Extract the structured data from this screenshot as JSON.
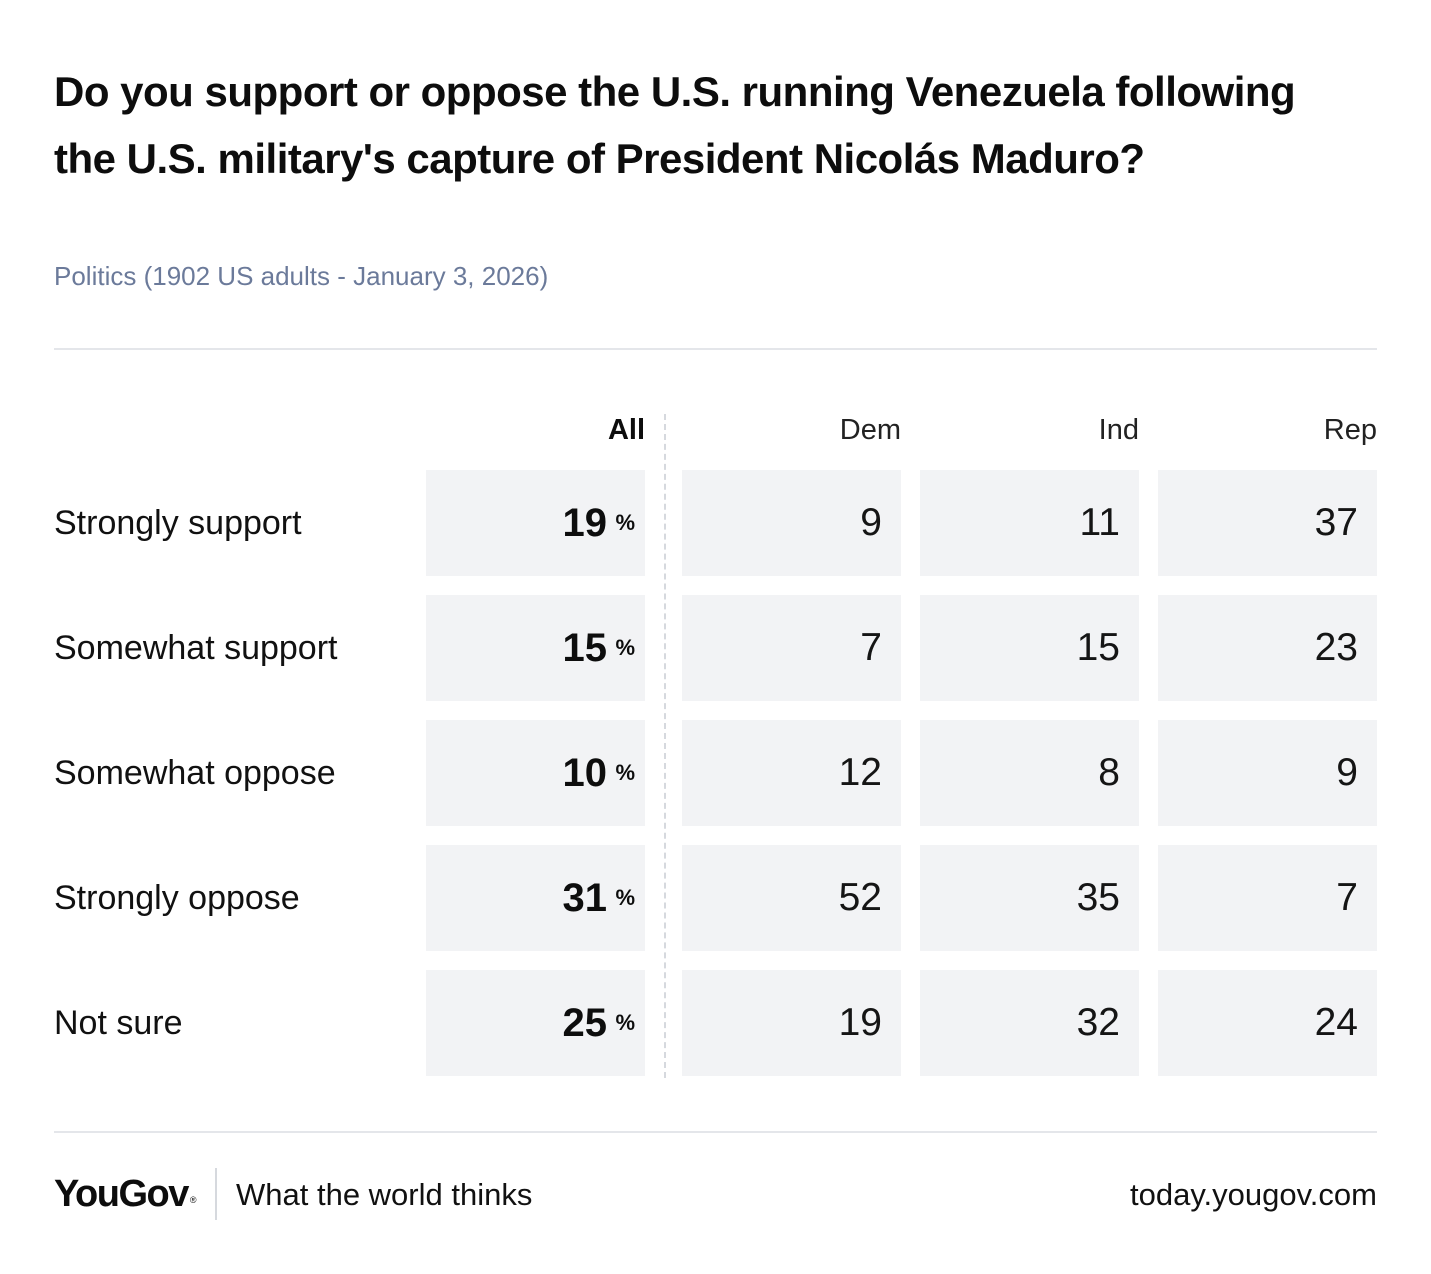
{
  "title": "Do you support or oppose the U.S. running Venezuela following the U.S. military's capture of President Nicolás Maduro?",
  "subtitle": "Politics (1902 US adults - January 3, 2026)",
  "columns": [
    "All",
    "Dem",
    "Ind",
    "Rep"
  ],
  "percent_symbol": "%",
  "chart_data": {
    "type": "table",
    "title": "Do you support or oppose the U.S. running Venezuela following the U.S. military's capture of President Nicolás Maduro?",
    "columns": [
      "All",
      "Dem",
      "Ind",
      "Rep"
    ],
    "rows": [
      {
        "label": "Strongly support",
        "values": [
          19,
          9,
          11,
          37
        ]
      },
      {
        "label": "Somewhat support",
        "values": [
          15,
          7,
          15,
          23
        ]
      },
      {
        "label": "Somewhat oppose",
        "values": [
          10,
          12,
          8,
          9
        ]
      },
      {
        "label": "Strongly oppose",
        "values": [
          31,
          52,
          35,
          7
        ]
      },
      {
        "label": "Not sure",
        "values": [
          25,
          19,
          32,
          24
        ]
      }
    ],
    "unit": "%"
  },
  "footer": {
    "logo": "YouGov",
    "logo_mark": "®",
    "tagline": "What the world thinks",
    "url": "today.yougov.com"
  },
  "colors": {
    "cell_background": "#f2f3f5",
    "subtitle": "#6b7a9a",
    "rule": "#e4e6ea",
    "text": "#111111"
  }
}
